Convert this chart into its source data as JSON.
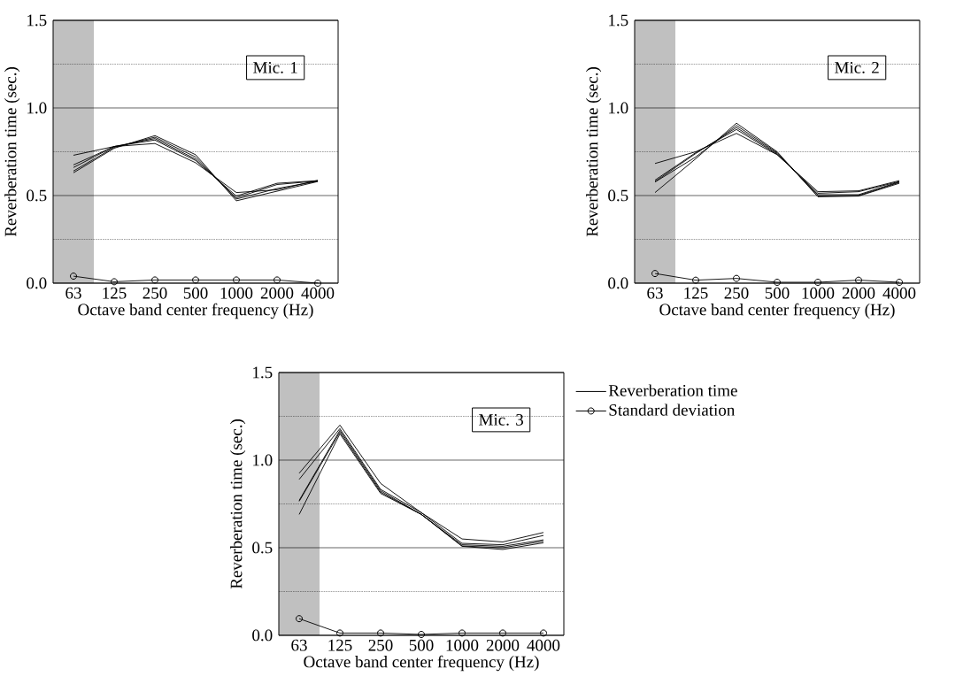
{
  "chart_data": [
    {
      "type": "line",
      "xlabel": "Octave band center frequency (Hz)",
      "ylabel": "Reverberation time (sec.)",
      "annotations": [
        "Mic. 1"
      ],
      "categories": [
        "63",
        "125",
        "250",
        "500",
        "1000",
        "2000",
        "4000"
      ],
      "ylim": [
        0,
        1.5
      ],
      "yticks": [
        {
          "value": 0,
          "label": "0.0"
        },
        {
          "value": 0.25,
          "label": null
        },
        {
          "value": 0.5,
          "label": "0.5"
        },
        {
          "value": 0.75,
          "label": null
        },
        {
          "value": 1,
          "label": "1.0"
        },
        {
          "value": 1.25,
          "label": null
        },
        {
          "value": 1.5,
          "label": "1.5"
        }
      ],
      "grid": "y",
      "legend": false,
      "bands": [
        {
          "axis": "x",
          "from": "63",
          "to": "63",
          "color": "#c0c0c0"
        }
      ],
      "series": [
        {
          "color": "#000000",
          "values": [
            0.73,
            0.78,
            0.797,
            0.687,
            0.517,
            0.533,
            0.587
          ]
        },
        {
          "color": "#000000",
          "values": [
            0.675,
            0.78,
            0.817,
            0.7,
            0.497,
            0.57,
            0.585
          ]
        },
        {
          "color": "#000000",
          "values": [
            0.66,
            0.78,
            0.825,
            0.708,
            0.487,
            0.563,
            0.583
          ]
        },
        {
          "color": "#000000",
          "values": [
            0.64,
            0.775,
            0.833,
            0.72,
            0.48,
            0.54,
            0.582
          ]
        },
        {
          "color": "#000000",
          "values": [
            0.63,
            0.77,
            0.842,
            0.733,
            0.47,
            0.525,
            0.58
          ]
        },
        {
          "color": "#000000",
          "marker": "circle",
          "values": [
            0.04,
            0.008,
            0.018,
            0.018,
            0.018,
            0.018,
            0.0
          ]
        }
      ]
    },
    {
      "type": "line",
      "xlabel": "Octave band center frequency (Hz)",
      "ylabel": "Reverberation time (sec.)",
      "annotations": [
        "Mic. 2"
      ],
      "categories": [
        "63",
        "125",
        "250",
        "500",
        "1000",
        "2000",
        "4000"
      ],
      "ylim": [
        0,
        1.5
      ],
      "yticks": [
        {
          "value": 0,
          "label": "0.0"
        },
        {
          "value": 0.25,
          "label": null
        },
        {
          "value": 0.5,
          "label": "0.5"
        },
        {
          "value": 0.75,
          "label": null
        },
        {
          "value": 1,
          "label": "1.0"
        },
        {
          "value": 1.25,
          "label": null
        },
        {
          "value": 1.5,
          "label": "1.5"
        }
      ],
      "grid": "y",
      "legend": false,
      "bands": [
        {
          "axis": "x",
          "from": "63",
          "to": "63",
          "color": "#c0c0c0"
        }
      ],
      "series": [
        {
          "color": "#000000",
          "values": [
            0.683,
            0.75,
            0.855,
            0.733,
            0.522,
            0.527,
            0.585
          ]
        },
        {
          "color": "#000000",
          "values": [
            0.588,
            0.745,
            0.877,
            0.735,
            0.513,
            0.522,
            0.58
          ]
        },
        {
          "color": "#000000",
          "values": [
            0.58,
            0.74,
            0.888,
            0.74,
            0.505,
            0.505,
            0.578
          ]
        },
        {
          "color": "#000000",
          "values": [
            0.577,
            0.72,
            0.9,
            0.745,
            0.497,
            0.5,
            0.575
          ]
        },
        {
          "color": "#000000",
          "values": [
            0.517,
            0.71,
            0.913,
            0.75,
            0.493,
            0.497,
            0.57
          ]
        },
        {
          "color": "#000000",
          "marker": "circle",
          "values": [
            0.055,
            0.017,
            0.027,
            0.005,
            0.005,
            0.017,
            0.005
          ]
        }
      ]
    },
    {
      "type": "line",
      "xlabel": "Octave band center frequency (Hz)",
      "ylabel": "Reverberation time (sec.)",
      "annotations": [
        "Mic. 3"
      ],
      "categories": [
        "63",
        "125",
        "250",
        "500",
        "1000",
        "2000",
        "4000"
      ],
      "ylim": [
        0,
        1.5
      ],
      "yticks": [
        {
          "value": 0,
          "label": "0.0"
        },
        {
          "value": 0.25,
          "label": null
        },
        {
          "value": 0.5,
          "label": "0.5"
        },
        {
          "value": 0.75,
          "label": null
        },
        {
          "value": 1,
          "label": "1.0"
        },
        {
          "value": 1.25,
          "label": null
        },
        {
          "value": 1.5,
          "label": "1.5"
        }
      ],
      "grid": "y",
      "legend": "right",
      "bands": [
        {
          "axis": "x",
          "from": "63",
          "to": "63",
          "color": "#c0c0c0"
        }
      ],
      "series": [
        {
          "name": "Reverberation time",
          "color": "#000000",
          "values": [
            0.925,
            1.2,
            0.867,
            0.7,
            0.55,
            0.533,
            0.587
          ]
        },
        {
          "color": "#000000",
          "values": [
            0.89,
            1.18,
            0.833,
            0.7,
            0.525,
            0.517,
            0.57
          ]
        },
        {
          "color": "#000000",
          "values": [
            0.77,
            1.17,
            0.825,
            0.69,
            0.517,
            0.508,
            0.545
          ]
        },
        {
          "color": "#000000",
          "values": [
            0.765,
            1.16,
            0.817,
            0.69,
            0.51,
            0.5,
            0.537
          ]
        },
        {
          "color": "#000000",
          "values": [
            0.69,
            1.15,
            0.81,
            0.69,
            0.508,
            0.49,
            0.528
          ]
        },
        {
          "name": "Standard deviation",
          "color": "#000000",
          "marker": "circle",
          "values": [
            0.095,
            0.013,
            0.013,
            0.005,
            0.013,
            0.013,
            0.013
          ]
        }
      ]
    }
  ]
}
